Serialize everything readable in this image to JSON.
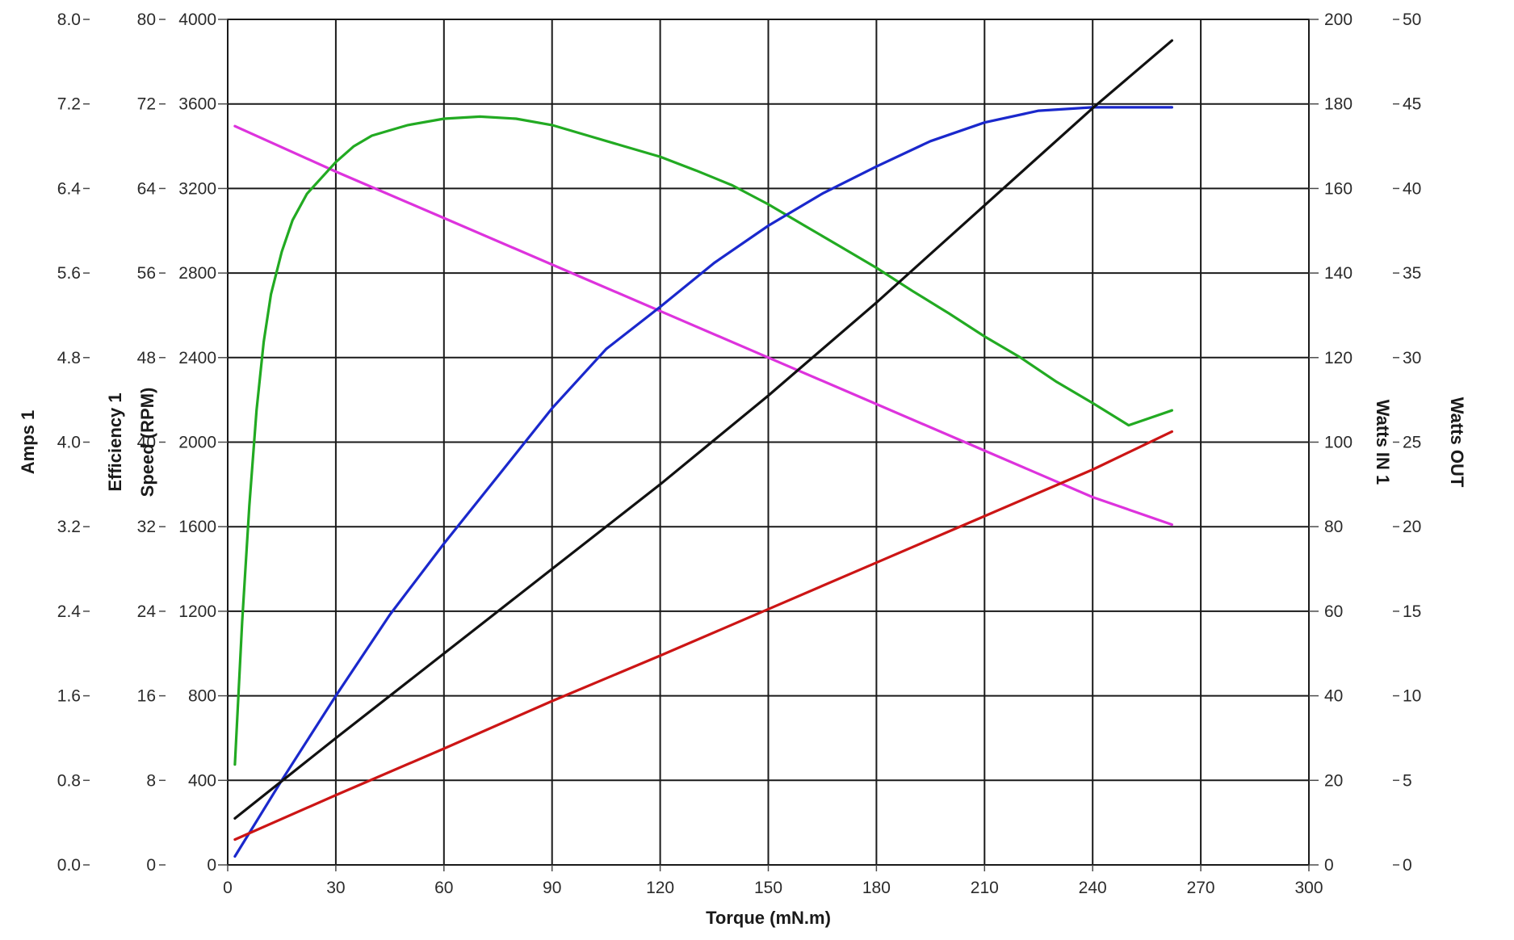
{
  "chart_data": {
    "type": "line",
    "xlabel": "Torque (mN.m)",
    "xlim": [
      0,
      300
    ],
    "xticks": [
      0,
      30,
      60,
      90,
      120,
      150,
      180,
      210,
      240,
      270,
      300
    ],
    "grid": true,
    "axes": [
      {
        "id": "amps",
        "label": "Amps 1",
        "side": "left",
        "ylim": [
          0,
          8
        ],
        "ticks": [
          "0.0",
          "0.8",
          "1.6",
          "2.4",
          "3.2",
          "4.0",
          "4.8",
          "5.6",
          "6.4",
          "7.2",
          "8.0"
        ]
      },
      {
        "id": "efficiency",
        "label": "Efficiency 1",
        "side": "left",
        "ylim": [
          0,
          80
        ],
        "ticks": [
          "0",
          "8",
          "16",
          "24",
          "32",
          "40",
          "48",
          "56",
          "64",
          "72",
          "80"
        ]
      },
      {
        "id": "speed",
        "label": "Speed (RPM)",
        "side": "left",
        "ylim": [
          0,
          4000
        ],
        "ticks": [
          "0",
          "400",
          "800",
          "1200",
          "1600",
          "2000",
          "2400",
          "2800",
          "3200",
          "3600",
          "4000"
        ]
      },
      {
        "id": "watts_in",
        "label": "Watts IN 1",
        "side": "right",
        "ylim": [
          0,
          200
        ],
        "ticks": [
          "0",
          "20",
          "40",
          "60",
          "80",
          "100",
          "120",
          "140",
          "160",
          "180",
          "200"
        ]
      },
      {
        "id": "watts_out",
        "label": "Watts OUT",
        "side": "right",
        "ylim": [
          0,
          50
        ],
        "ticks": [
          "0",
          "5",
          "10",
          "15",
          "20",
          "25",
          "30",
          "35",
          "40",
          "45",
          "50"
        ]
      }
    ],
    "series": [
      {
        "axis": "speed",
        "color": "#dd33dd",
        "x": [
          2,
          30,
          60,
          90,
          120,
          150,
          180,
          210,
          240,
          262
        ],
        "y": [
          3495,
          3280,
          3060,
          2840,
          2620,
          2400,
          2180,
          1960,
          1740,
          1610
        ]
      },
      {
        "axis": "efficiency",
        "color": "#22aa22",
        "x": [
          2,
          4,
          6,
          8,
          10,
          12,
          15,
          18,
          22,
          26,
          30,
          35,
          40,
          45,
          50,
          60,
          70,
          80,
          90,
          100,
          110,
          120,
          130,
          140,
          150,
          160,
          170,
          180,
          190,
          200,
          210,
          220,
          230,
          240,
          250,
          262
        ],
        "y": [
          9.5,
          23,
          34,
          43,
          49.5,
          54,
          58,
          61,
          63.5,
          65,
          66.5,
          68,
          69,
          69.5,
          70,
          70.6,
          70.8,
          70.6,
          70,
          69,
          68,
          67,
          65.7,
          64.3,
          62.5,
          60.5,
          58.5,
          56.5,
          54.3,
          52.2,
          50,
          48,
          45.7,
          43.7,
          41.6,
          43
        ]
      },
      {
        "axis": "watts_out",
        "color": "#1a28cc",
        "x": [
          2,
          15,
          30,
          45,
          60,
          75,
          90,
          105,
          120,
          135,
          150,
          165,
          180,
          195,
          210,
          225,
          240,
          250,
          262
        ],
        "y": [
          0.5,
          5,
          10,
          14.8,
          19,
          23,
          27,
          30.5,
          33,
          35.6,
          37.8,
          39.7,
          41.3,
          42.8,
          43.9,
          44.6,
          44.8,
          44.8,
          44.8
        ]
      },
      {
        "axis": "watts_in",
        "color": "#111111",
        "x": [
          2,
          30,
          60,
          90,
          120,
          150,
          180,
          210,
          240,
          262
        ],
        "y": [
          11,
          30,
          50,
          70,
          90,
          111,
          133,
          156,
          179,
          195
        ]
      },
      {
        "axis": "amps",
        "color": "#cc1515",
        "x": [
          2,
          30,
          60,
          90,
          120,
          150,
          180,
          210,
          240,
          262
        ],
        "y": [
          0.24,
          0.66,
          1.1,
          1.55,
          1.98,
          2.42,
          2.86,
          3.3,
          3.74,
          4.1
        ]
      }
    ]
  }
}
